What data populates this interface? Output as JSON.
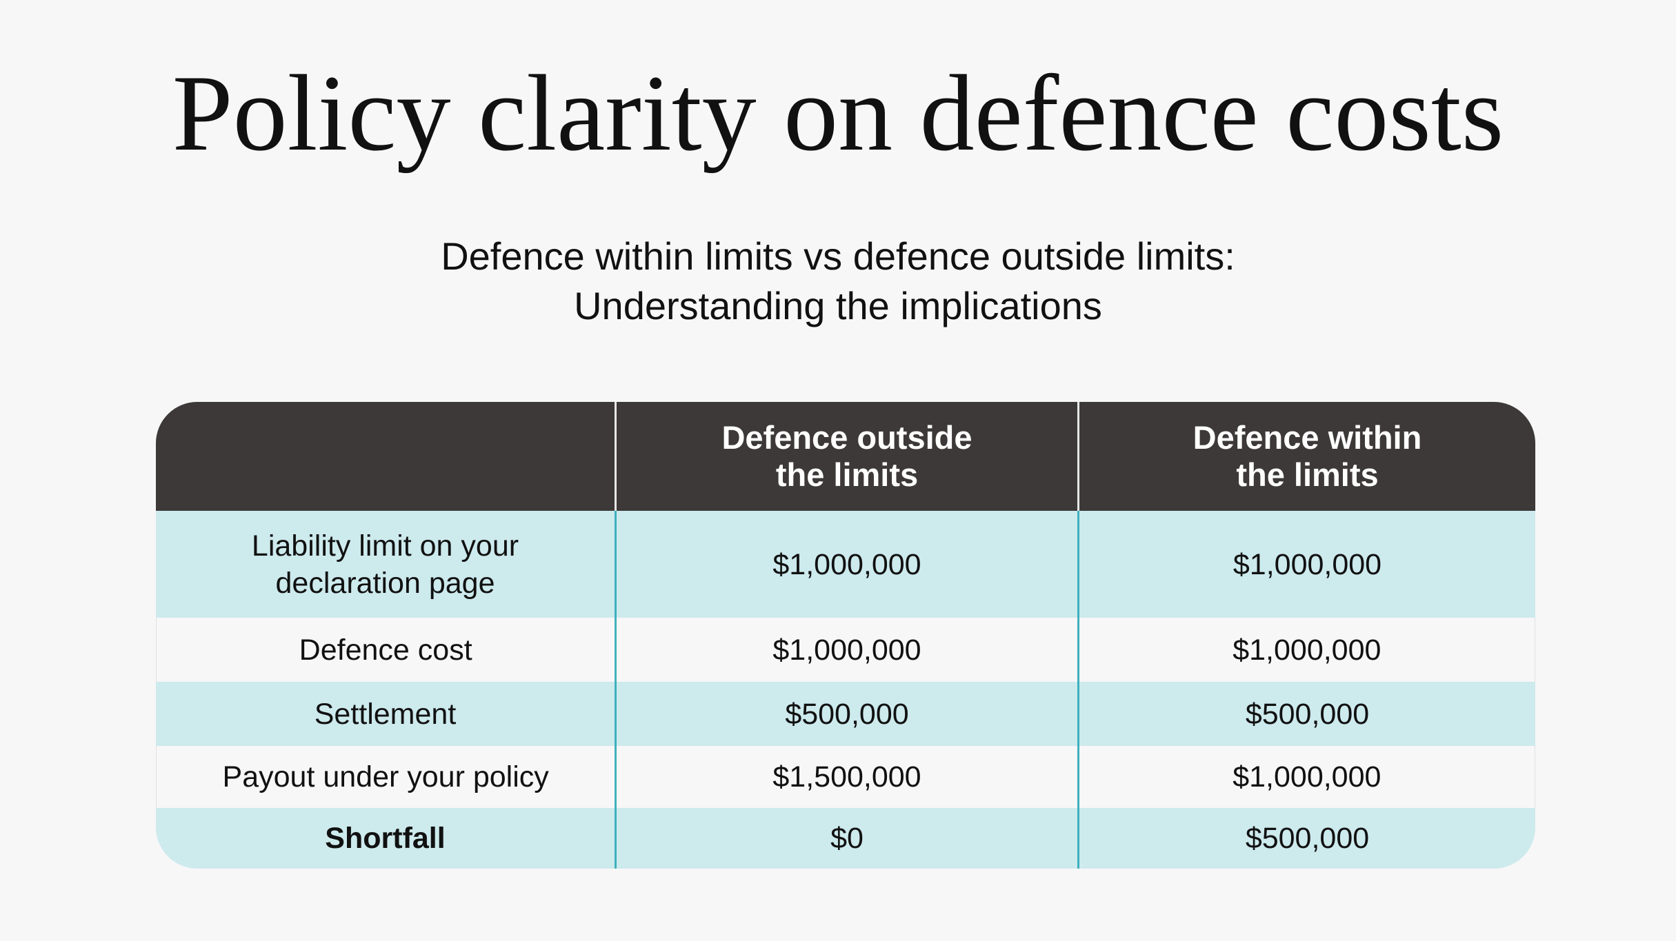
{
  "title": "Policy clarity on defence costs",
  "subtitle": {
    "line1": "Defence within limits vs defence outside limits:",
    "line2": "Understanding the implications"
  },
  "table": {
    "headers": [
      "",
      "Defence outside the limits",
      "Defence within the limits"
    ],
    "header_lines": [
      [
        "Defence outside",
        "the limits"
      ],
      [
        "Defence within",
        "the limits"
      ]
    ],
    "rows": [
      {
        "label_lines": [
          "Liability limit on your",
          "declaration page"
        ],
        "outside": "$1,000,000",
        "within": "$1,000,000"
      },
      {
        "label": "Defence cost",
        "outside": "$1,000,000",
        "within": "$1,000,000"
      },
      {
        "label": "Settlement",
        "outside": "$500,000",
        "within": "$500,000"
      },
      {
        "label": "Payout under your policy",
        "outside": "$1,500,000",
        "within": "$1,000,000"
      },
      {
        "label": "Shortfall",
        "outside": "$0",
        "within": "$500,000"
      }
    ]
  },
  "colors": {
    "header_bg": "#3d3938",
    "row_teal": "#cdeaed",
    "row_light": "#f7f7f7",
    "divider": "#3fb0bd"
  }
}
